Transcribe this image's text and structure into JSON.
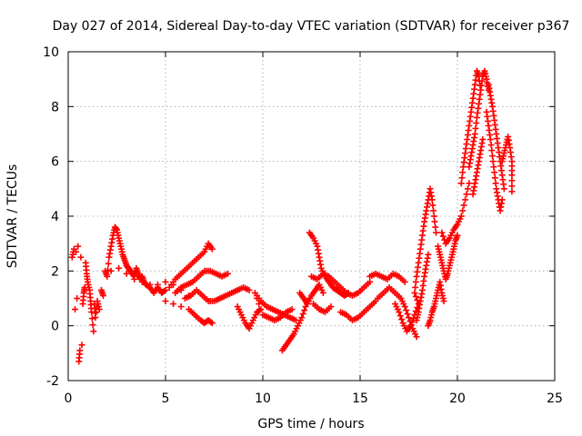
{
  "chart_data": {
    "type": "scatter",
    "title": "Day 027 of 2014, Sidereal Day-to-day VTEC variation (SDTVAR) for receiver p367",
    "xlabel": "GPS time / hours",
    "ylabel": "SDTVAR / TECUs",
    "xlim": [
      0,
      25
    ],
    "ylim": [
      -2,
      10
    ],
    "xticks": [
      "0",
      "5",
      "10",
      "15",
      "20",
      "25"
    ],
    "yticks": [
      "-2",
      "0",
      "2",
      "4",
      "6",
      "8",
      "10"
    ],
    "grid": true,
    "marker": "plus",
    "color": "#ff0000",
    "series": [
      {
        "name": "SDTVAR",
        "points": [
          [
            0.2,
            2.5
          ],
          [
            0.3,
            2.8
          ],
          [
            0.35,
            0.6
          ],
          [
            0.4,
            2.7
          ],
          [
            0.45,
            1.0
          ],
          [
            0.5,
            2.9
          ],
          [
            0.55,
            -1.3
          ],
          [
            0.6,
            -0.9
          ],
          [
            0.65,
            2.5
          ],
          [
            0.7,
            -0.7
          ],
          [
            0.75,
            0.8
          ],
          [
            0.8,
            1.2
          ],
          [
            0.85,
            1.4
          ],
          [
            0.9,
            2.3
          ],
          [
            0.95,
            1.9
          ],
          [
            1.0,
            1.6
          ],
          [
            1.1,
            1.3
          ],
          [
            1.15,
            0.9
          ],
          [
            1.2,
            0.5
          ],
          [
            1.3,
            -0.2
          ],
          [
            1.35,
            0.8
          ],
          [
            1.4,
            0.3
          ],
          [
            1.5,
            0.9
          ],
          [
            1.6,
            0.6
          ],
          [
            1.7,
            1.3
          ],
          [
            1.8,
            1.1
          ],
          [
            1.9,
            2.0
          ],
          [
            2.0,
            1.8
          ],
          [
            2.1,
            2.5
          ],
          [
            2.2,
            2.9
          ],
          [
            2.3,
            3.3
          ],
          [
            2.4,
            3.6
          ],
          [
            2.5,
            3.5
          ],
          [
            2.6,
            3.2
          ],
          [
            2.7,
            2.9
          ],
          [
            2.8,
            2.6
          ],
          [
            2.9,
            2.4
          ],
          [
            3.0,
            2.2
          ],
          [
            3.1,
            2.1
          ],
          [
            3.2,
            2.0
          ],
          [
            3.3,
            1.9
          ],
          [
            3.4,
            1.8
          ],
          [
            3.5,
            2.1
          ],
          [
            3.6,
            1.9
          ],
          [
            3.7,
            1.7
          ],
          [
            3.8,
            1.8
          ],
          [
            3.9,
            1.6
          ],
          [
            4.0,
            1.5
          ],
          [
            4.2,
            1.4
          ],
          [
            4.4,
            1.2
          ],
          [
            4.6,
            1.4
          ],
          [
            4.8,
            1.2
          ],
          [
            5.0,
            1.3
          ],
          [
            2.2,
            2.0
          ],
          [
            2.6,
            2.1
          ],
          [
            3.0,
            1.9
          ],
          [
            3.4,
            1.7
          ],
          [
            3.8,
            1.6
          ],
          [
            4.2,
            1.5
          ],
          [
            4.6,
            1.5
          ],
          [
            5.0,
            1.6
          ],
          [
            5.4,
            1.5
          ],
          [
            5.8,
            1.3
          ],
          [
            6.2,
            1.1
          ],
          [
            5.2,
            1.4
          ],
          [
            5.5,
            1.7
          ],
          [
            5.8,
            1.9
          ],
          [
            6.1,
            2.1
          ],
          [
            6.4,
            2.3
          ],
          [
            6.7,
            2.5
          ],
          [
            7.0,
            2.7
          ],
          [
            7.2,
            3.0
          ],
          [
            7.4,
            2.8
          ],
          [
            5.5,
            1.2
          ],
          [
            5.8,
            1.4
          ],
          [
            6.1,
            1.5
          ],
          [
            6.4,
            1.6
          ],
          [
            6.7,
            1.8
          ],
          [
            7.0,
            2.0
          ],
          [
            7.3,
            2.0
          ],
          [
            7.6,
            1.9
          ],
          [
            7.9,
            1.8
          ],
          [
            8.2,
            1.9
          ],
          [
            5.0,
            0.9
          ],
          [
            5.4,
            0.8
          ],
          [
            5.8,
            0.7
          ],
          [
            6.2,
            0.6
          ],
          [
            6.5,
            0.4
          ],
          [
            6.8,
            0.2
          ],
          [
            7.0,
            0.1
          ],
          [
            7.2,
            0.2
          ],
          [
            7.4,
            0.1
          ],
          [
            6.0,
            1.0
          ],
          [
            6.3,
            1.1
          ],
          [
            6.6,
            1.3
          ],
          [
            6.9,
            1.1
          ],
          [
            7.2,
            0.9
          ],
          [
            7.5,
            0.9
          ],
          [
            7.8,
            1.0
          ],
          [
            8.1,
            1.1
          ],
          [
            8.4,
            1.2
          ],
          [
            8.7,
            1.3
          ],
          [
            9.0,
            1.4
          ],
          [
            9.3,
            1.3
          ],
          [
            8.7,
            0.7
          ],
          [
            8.9,
            0.4
          ],
          [
            9.1,
            0.1
          ],
          [
            9.3,
            -0.1
          ],
          [
            9.5,
            0.2
          ],
          [
            9.7,
            0.5
          ],
          [
            9.9,
            0.6
          ],
          [
            9.6,
            1.2
          ],
          [
            9.9,
            0.9
          ],
          [
            10.2,
            0.7
          ],
          [
            10.5,
            0.6
          ],
          [
            10.8,
            0.5
          ],
          [
            11.1,
            0.4
          ],
          [
            11.4,
            0.3
          ],
          [
            11.7,
            0.2
          ],
          [
            10.0,
            0.4
          ],
          [
            10.3,
            0.3
          ],
          [
            10.6,
            0.2
          ],
          [
            10.9,
            0.3
          ],
          [
            11.2,
            0.5
          ],
          [
            11.5,
            0.6
          ],
          [
            11.0,
            -0.9
          ],
          [
            11.2,
            -0.7
          ],
          [
            11.4,
            -0.5
          ],
          [
            11.6,
            -0.3
          ],
          [
            11.8,
            0.0
          ],
          [
            12.0,
            0.3
          ],
          [
            12.2,
            0.7
          ],
          [
            12.4,
            1.0
          ],
          [
            11.9,
            1.2
          ],
          [
            12.1,
            1.0
          ],
          [
            12.3,
            0.8
          ],
          [
            12.5,
            1.1
          ],
          [
            12.7,
            1.3
          ],
          [
            12.9,
            1.5
          ],
          [
            13.1,
            1.2
          ],
          [
            12.4,
            3.4
          ],
          [
            12.6,
            3.2
          ],
          [
            12.8,
            2.9
          ],
          [
            12.9,
            2.5
          ],
          [
            13.0,
            2.1
          ],
          [
            13.2,
            1.8
          ],
          [
            13.4,
            1.6
          ],
          [
            13.6,
            1.4
          ],
          [
            13.8,
            1.3
          ],
          [
            14.0,
            1.2
          ],
          [
            14.2,
            1.1
          ],
          [
            14.4,
            1.2
          ],
          [
            12.5,
            1.8
          ],
          [
            12.8,
            1.7
          ],
          [
            13.1,
            1.9
          ],
          [
            13.4,
            1.8
          ],
          [
            13.7,
            1.6
          ],
          [
            14.0,
            1.4
          ],
          [
            14.3,
            1.2
          ],
          [
            14.6,
            1.1
          ],
          [
            14.9,
            1.2
          ],
          [
            15.2,
            1.4
          ],
          [
            15.5,
            1.6
          ],
          [
            12.6,
            0.8
          ],
          [
            12.9,
            0.6
          ],
          [
            13.2,
            0.5
          ],
          [
            13.5,
            0.7
          ],
          [
            14.0,
            0.5
          ],
          [
            14.3,
            0.4
          ],
          [
            14.6,
            0.2
          ],
          [
            14.9,
            0.3
          ],
          [
            15.2,
            0.5
          ],
          [
            15.5,
            0.7
          ],
          [
            15.8,
            0.9
          ],
          [
            15.5,
            1.8
          ],
          [
            15.8,
            1.9
          ],
          [
            16.1,
            1.8
          ],
          [
            16.4,
            1.7
          ],
          [
            16.7,
            1.9
          ],
          [
            17.0,
            1.8
          ],
          [
            17.3,
            1.6
          ],
          [
            15.9,
            1.0
          ],
          [
            16.2,
            1.2
          ],
          [
            16.5,
            1.4
          ],
          [
            16.8,
            1.2
          ],
          [
            17.1,
            1.0
          ],
          [
            17.3,
            0.7
          ],
          [
            17.5,
            0.3
          ],
          [
            17.7,
            -0.1
          ],
          [
            17.9,
            -0.4
          ],
          [
            16.8,
            0.8
          ],
          [
            17.0,
            0.5
          ],
          [
            17.2,
            0.1
          ],
          [
            17.4,
            -0.2
          ],
          [
            17.6,
            0.0
          ],
          [
            17.8,
            0.4
          ],
          [
            18.0,
            0.8
          ],
          [
            17.8,
            1.2
          ],
          [
            17.9,
            1.8
          ],
          [
            18.0,
            2.3
          ],
          [
            18.1,
            2.8
          ],
          [
            18.2,
            3.3
          ],
          [
            18.3,
            3.8
          ],
          [
            18.4,
            4.2
          ],
          [
            18.5,
            4.6
          ],
          [
            18.6,
            5.0
          ],
          [
            18.7,
            4.6
          ],
          [
            18.8,
            4.0
          ],
          [
            18.9,
            3.4
          ],
          [
            17.9,
            0.2
          ],
          [
            18.0,
            0.5
          ],
          [
            18.1,
            0.9
          ],
          [
            18.2,
            1.3
          ],
          [
            18.3,
            1.8
          ],
          [
            18.4,
            2.2
          ],
          [
            18.5,
            2.6
          ],
          [
            18.5,
            0.0
          ],
          [
            18.6,
            0.2
          ],
          [
            18.7,
            0.5
          ],
          [
            18.8,
            0.7
          ],
          [
            18.9,
            1.0
          ],
          [
            19.0,
            1.3
          ],
          [
            19.1,
            1.6
          ],
          [
            19.2,
            1.2
          ],
          [
            19.3,
            0.9
          ],
          [
            19.0,
            2.9
          ],
          [
            19.1,
            2.6
          ],
          [
            19.2,
            2.3
          ],
          [
            19.3,
            2.0
          ],
          [
            19.4,
            1.7
          ],
          [
            19.5,
            1.9
          ],
          [
            19.6,
            2.2
          ],
          [
            19.7,
            2.5
          ],
          [
            19.8,
            2.8
          ],
          [
            19.9,
            3.1
          ],
          [
            20.0,
            3.3
          ],
          [
            19.2,
            3.4
          ],
          [
            19.4,
            3.0
          ],
          [
            19.6,
            3.2
          ],
          [
            19.8,
            3.5
          ],
          [
            20.0,
            3.7
          ],
          [
            20.2,
            4.0
          ],
          [
            20.4,
            4.6
          ],
          [
            20.6,
            5.2
          ],
          [
            20.2,
            5.2
          ],
          [
            20.3,
            5.8
          ],
          [
            20.4,
            6.3
          ],
          [
            20.5,
            6.8
          ],
          [
            20.6,
            7.3
          ],
          [
            20.7,
            7.8
          ],
          [
            20.8,
            8.3
          ],
          [
            20.9,
            8.8
          ],
          [
            21.0,
            9.3
          ],
          [
            21.1,
            9.1
          ],
          [
            21.2,
            8.6
          ],
          [
            20.6,
            5.8
          ],
          [
            20.7,
            6.2
          ],
          [
            20.8,
            6.6
          ],
          [
            20.9,
            7.0
          ],
          [
            21.0,
            7.6
          ],
          [
            21.1,
            8.1
          ],
          [
            21.2,
            8.6
          ],
          [
            21.3,
            9.1
          ],
          [
            21.4,
            9.3
          ],
          [
            21.5,
            9.0
          ],
          [
            21.6,
            8.6
          ],
          [
            20.8,
            4.8
          ],
          [
            20.9,
            5.2
          ],
          [
            21.0,
            5.6
          ],
          [
            21.1,
            6.0
          ],
          [
            21.2,
            6.4
          ],
          [
            21.3,
            6.8
          ],
          [
            21.5,
            7.8
          ],
          [
            21.6,
            7.3
          ],
          [
            21.7,
            6.8
          ],
          [
            21.8,
            6.2
          ],
          [
            21.9,
            5.6
          ],
          [
            22.0,
            5.0
          ],
          [
            22.1,
            4.6
          ],
          [
            22.2,
            4.2
          ],
          [
            22.3,
            4.6
          ],
          [
            21.6,
            8.8
          ],
          [
            21.7,
            8.4
          ],
          [
            21.8,
            8.0
          ],
          [
            21.9,
            7.5
          ],
          [
            22.0,
            7.0
          ],
          [
            22.1,
            6.5
          ],
          [
            22.2,
            6.0
          ],
          [
            22.3,
            5.5
          ],
          [
            22.4,
            5.0
          ],
          [
            22.3,
            6.0
          ],
          [
            22.4,
            6.3
          ],
          [
            22.5,
            6.6
          ],
          [
            22.6,
            6.9
          ],
          [
            22.7,
            6.5
          ],
          [
            22.8,
            6.0
          ],
          [
            22.8,
            5.5
          ],
          [
            22.8,
            4.9
          ]
        ]
      }
    ]
  }
}
